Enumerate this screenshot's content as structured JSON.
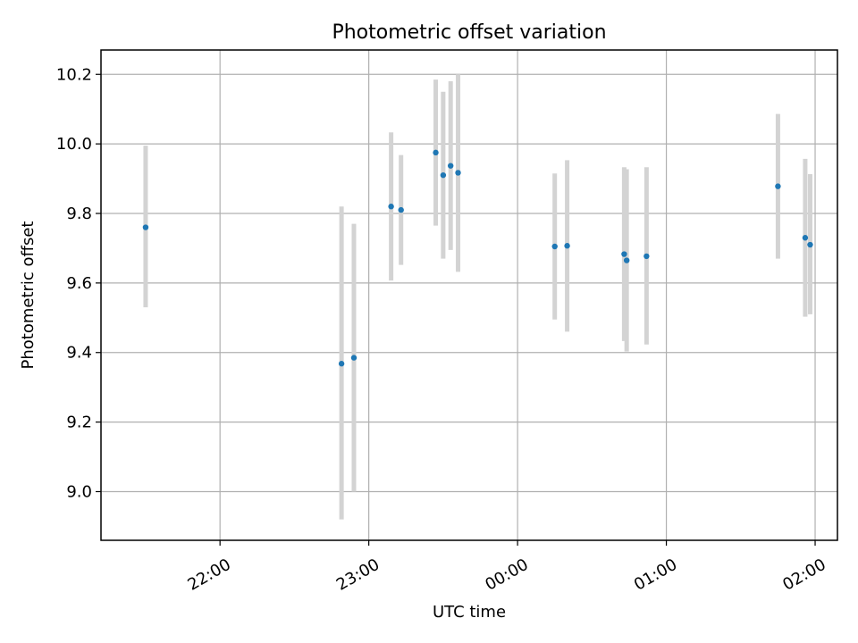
{
  "chart_data": {
    "type": "scatter",
    "title": "Photometric offset variation",
    "xlabel": "UTC time",
    "ylabel": "Photometric offset",
    "x_axis": {
      "kind": "time",
      "xlim": [
        "21:12",
        "02:09"
      ],
      "ticks": [
        "22:00",
        "23:00",
        "00:00",
        "01:00",
        "02:00"
      ],
      "tick_label_rotation_deg": 30
    },
    "y_axis": {
      "ylim": [
        8.86,
        10.27
      ],
      "ticks": [
        "9.0",
        "9.2",
        "9.4",
        "9.6",
        "9.8",
        "10.0",
        "10.2"
      ]
    },
    "grid": true,
    "legend": "none",
    "colors": {
      "point": "#1f77b4",
      "errorbar": "#d3d3d3",
      "grid": "#b0b0b0",
      "axes": "#000000"
    },
    "points": [
      {
        "t": "21:30",
        "y": 9.76,
        "low": 9.53,
        "high": 9.995
      },
      {
        "t": "22:49",
        "y": 9.368,
        "low": 8.92,
        "high": 9.82
      },
      {
        "t": "22:54",
        "y": 9.385,
        "low": 9.0,
        "high": 9.77
      },
      {
        "t": "23:09",
        "y": 9.82,
        "low": 9.607,
        "high": 10.033
      },
      {
        "t": "23:13",
        "y": 9.81,
        "low": 9.652,
        "high": 9.968
      },
      {
        "t": "23:27",
        "y": 9.975,
        "low": 9.765,
        "high": 10.185
      },
      {
        "t": "23:30",
        "y": 9.91,
        "low": 9.67,
        "high": 10.15
      },
      {
        "t": "23:33",
        "y": 9.937,
        "low": 9.695,
        "high": 10.18
      },
      {
        "t": "23:36",
        "y": 9.917,
        "low": 9.632,
        "high": 10.2
      },
      {
        "t": "00:15",
        "y": 9.705,
        "low": 9.495,
        "high": 9.915
      },
      {
        "t": "00:20",
        "y": 9.707,
        "low": 9.46,
        "high": 9.953
      },
      {
        "t": "00:43",
        "y": 9.683,
        "low": 9.433,
        "high": 9.933
      },
      {
        "t": "00:44",
        "y": 9.665,
        "low": 9.403,
        "high": 9.927
      },
      {
        "t": "00:52",
        "y": 9.677,
        "low": 9.423,
        "high": 9.933
      },
      {
        "t": "01:45",
        "y": 9.878,
        "low": 9.67,
        "high": 10.086
      },
      {
        "t": "01:56",
        "y": 9.73,
        "low": 9.503,
        "high": 9.957
      },
      {
        "t": "01:58",
        "y": 9.71,
        "low": 9.51,
        "high": 9.913
      }
    ]
  }
}
